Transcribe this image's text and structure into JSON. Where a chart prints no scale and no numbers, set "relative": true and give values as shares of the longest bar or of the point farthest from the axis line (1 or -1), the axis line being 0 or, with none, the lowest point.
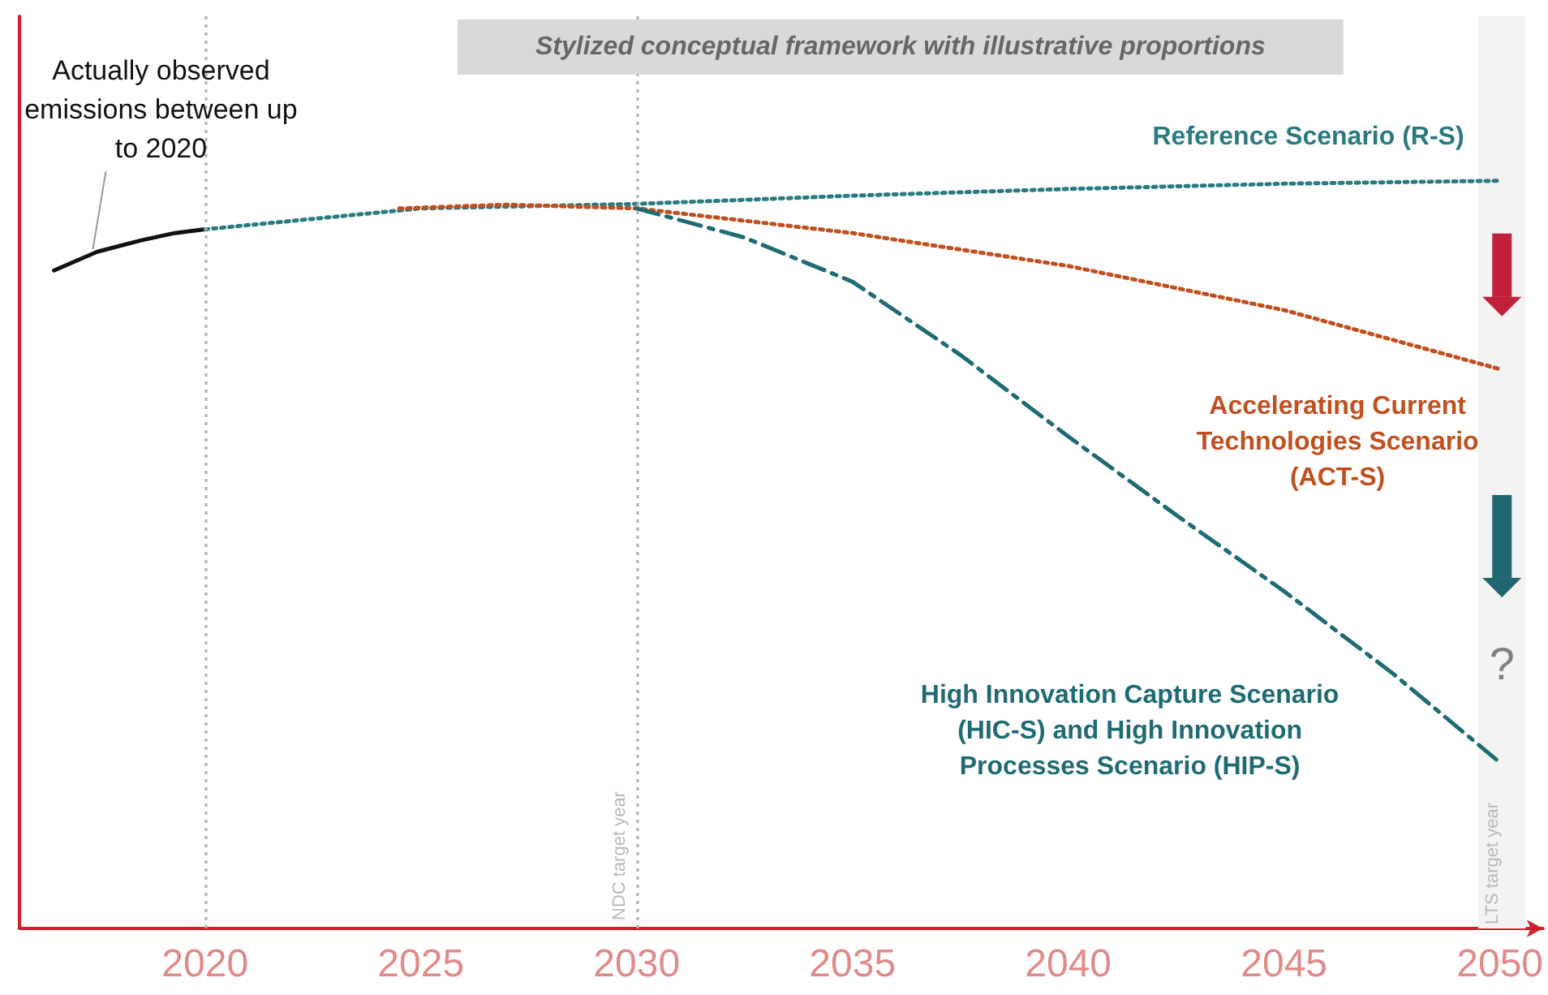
{
  "chart_data": {
    "type": "line",
    "title": "Stylized conceptual framework with illustrative proportions",
    "relative": true,
    "xlim": [
      2015.7,
      2051
    ],
    "xticks": [
      2020,
      2025,
      2030,
      2035,
      2040,
      2045,
      2050
    ],
    "grid": false,
    "legend": false,
    "marker": "none",
    "series": [
      {
        "color": "#111111",
        "line_style": "solid",
        "x": [
          2016.5,
          2017.5,
          2018.5,
          2019.3,
          2020
        ],
        "values": [
          0.88,
          0.905,
          0.92,
          0.93,
          0.935
        ]
      },
      {
        "name": "Reference Scenario (R-S)",
        "color": "#2a7a80",
        "line_style": "dotted",
        "x": [
          2020,
          2025,
          2030,
          2035,
          2040,
          2045,
          2050
        ],
        "values": [
          0.935,
          0.963,
          0.969,
          0.98,
          0.989,
          0.996,
          1
        ]
      },
      {
        "name": "Accelerating Current\nTechnologies Scenario\n(ACT-S)",
        "color": "#c0501f",
        "line_style": "dotted",
        "x": [
          2024.5,
          2027,
          2030,
          2035,
          2040,
          2045,
          2050
        ],
        "values": [
          0.963,
          0.968,
          0.963,
          0.93,
          0.886,
          0.827,
          0.748
        ]
      },
      {
        "name": "High Innovation Capture Scenario\n(HIC-S) and High Innovation\nProcesses Scenario (HIP-S)",
        "color": "#1f6b73",
        "line_style": "dashed",
        "x": [
          2030,
          2032.5,
          2035,
          2037.5,
          2040,
          2042.5,
          2045,
          2047.5,
          2050
        ],
        "values": [
          0.963,
          0.924,
          0.865,
          0.767,
          0.658,
          0.553,
          0.451,
          0.342,
          0.222
        ]
      }
    ],
    "ref_lines": [
      {
        "axis": "x",
        "value": 2020,
        "label": null,
        "color": "#b0b0b0",
        "line_style": "dotted"
      },
      {
        "axis": "x",
        "value": 2030,
        "label": "NDC target year",
        "color": "#b0b0b0",
        "line_style": "dotted"
      }
    ],
    "bands": [
      {
        "axis": "x",
        "from": 2049.5,
        "to": 2050.6,
        "label": "LTS target year",
        "color": "#f3f3f3"
      }
    ],
    "annotations": [
      {
        "text": "Actually observed\nemissions between up\nto 2020",
        "x": 2017.4,
        "y": 0.908
      },
      "?"
    ]
  }
}
